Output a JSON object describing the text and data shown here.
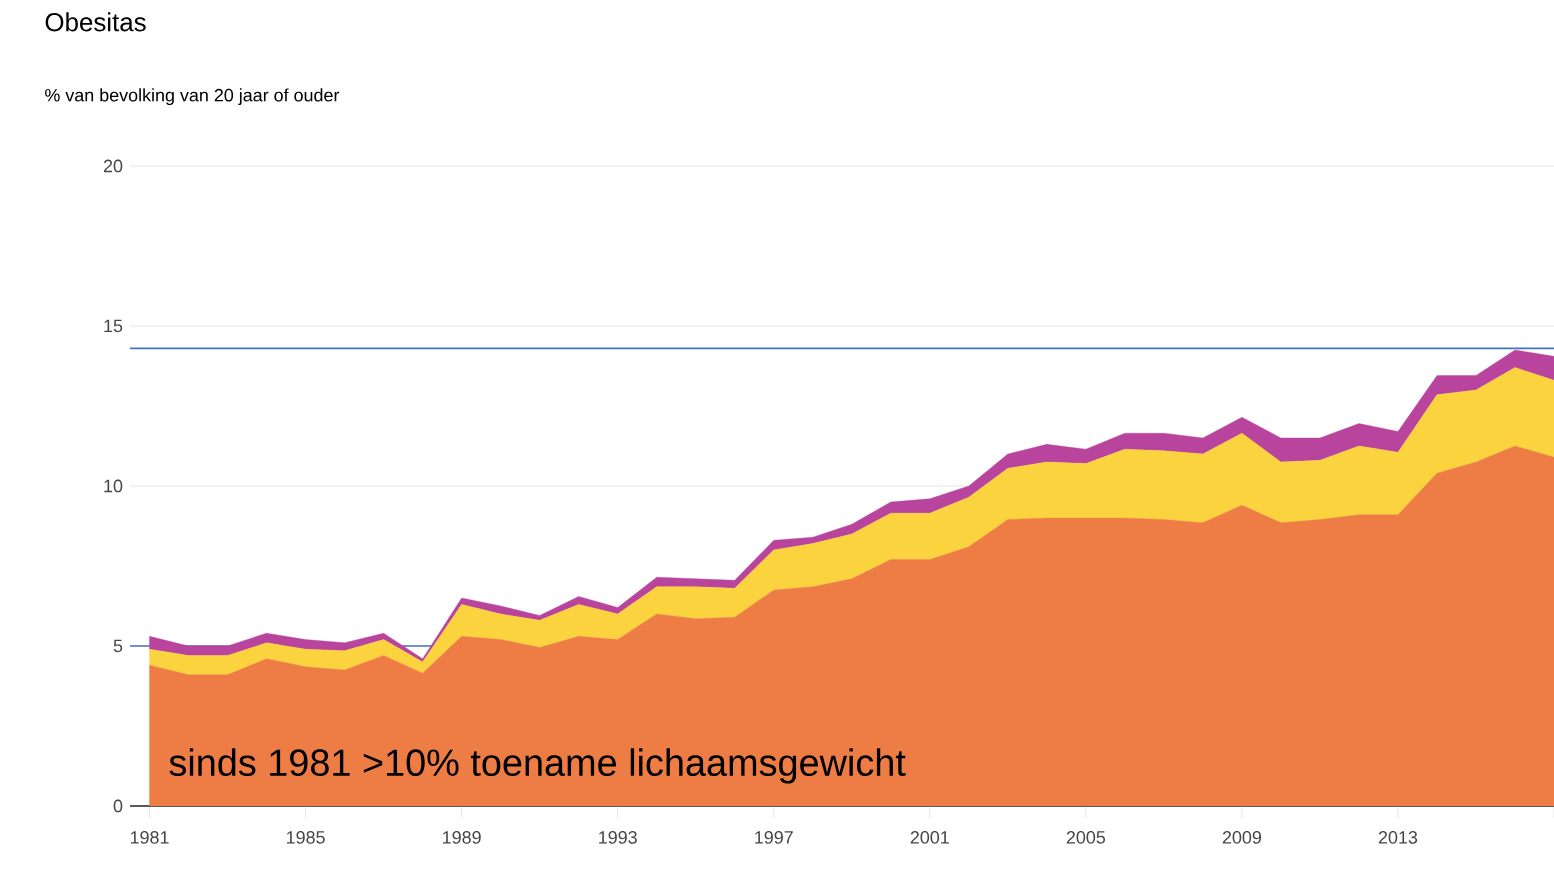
{
  "chart_data": {
    "type": "area",
    "title": "Obesitas",
    "subtitle": "% van bevolking van 20 jaar of ouder",
    "stacked": true,
    "x": [
      1981,
      1982,
      1983,
      1984,
      1985,
      1986,
      1987,
      1988,
      1989,
      1990,
      1991,
      1992,
      1993,
      1994,
      1995,
      1996,
      1997,
      1998,
      1999,
      2000,
      2001,
      2002,
      2003,
      2004,
      2005,
      2006,
      2007,
      2008,
      2009,
      2010,
      2011,
      2012,
      2013,
      2014,
      2015,
      2016,
      2017
    ],
    "series": [
      {
        "color": "#ed7d45",
        "values": [
          4.4,
          4.1,
          4.1,
          4.6,
          4.35,
          4.25,
          4.7,
          4.15,
          5.3,
          5.2,
          4.95,
          5.3,
          5.2,
          6.0,
          5.85,
          5.9,
          6.75,
          6.85,
          7.1,
          7.7,
          7.7,
          8.1,
          8.95,
          9.0,
          9.0,
          9.0,
          8.95,
          8.85,
          9.4,
          8.85,
          8.95,
          9.1,
          9.1,
          10.4,
          10.75,
          11.25,
          10.9
        ]
      },
      {
        "color": "#fbd33f",
        "values": [
          0.5,
          0.6,
          0.6,
          0.5,
          0.55,
          0.6,
          0.5,
          0.35,
          1.0,
          0.8,
          0.85,
          1.0,
          0.8,
          0.85,
          1.0,
          0.9,
          1.25,
          1.35,
          1.4,
          1.45,
          1.45,
          1.55,
          1.6,
          1.75,
          1.7,
          2.15,
          2.15,
          2.15,
          2.25,
          1.9,
          1.85,
          2.15,
          1.95,
          2.45,
          2.25,
          2.45,
          2.4
        ]
      },
      {
        "color": "#b9449e",
        "values": [
          0.4,
          0.3,
          0.3,
          0.3,
          0.3,
          0.25,
          0.2,
          0.1,
          0.2,
          0.25,
          0.15,
          0.25,
          0.2,
          0.3,
          0.25,
          0.25,
          0.3,
          0.2,
          0.3,
          0.35,
          0.45,
          0.35,
          0.45,
          0.55,
          0.45,
          0.5,
          0.55,
          0.5,
          0.5,
          0.75,
          0.7,
          0.7,
          0.65,
          0.6,
          0.45,
          0.55,
          0.75
        ]
      }
    ],
    "xlim": [
      1980.5,
      2017
    ],
    "xticks": [
      1981,
      1985,
      1989,
      1993,
      1997,
      2001,
      2005,
      2009,
      2013,
      {
        "value": 2017,
        "label": null
      }
    ],
    "ylim": [
      0,
      20
    ],
    "yticks": [
      0,
      5,
      10,
      15,
      20
    ],
    "grid": "y",
    "ref_lines": [
      {
        "axis": "y",
        "value": 14.3,
        "color": "#4472c4"
      },
      {
        "axis": "y",
        "value": 5,
        "color": "#4472c4"
      }
    ],
    "annotations": [
      "sinds 1981 >10% toename lichaamsgewicht"
    ]
  }
}
